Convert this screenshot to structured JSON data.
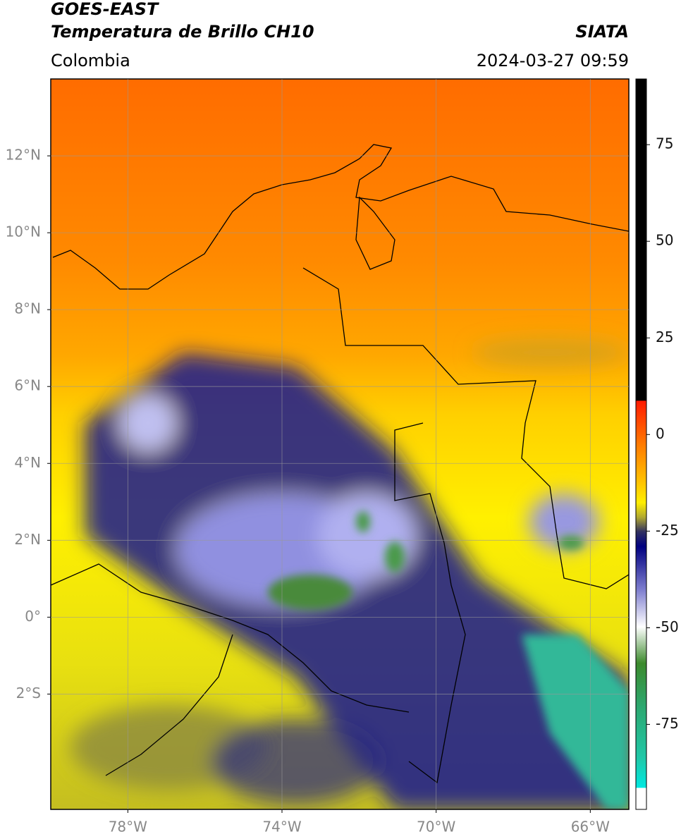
{
  "header": {
    "title": "GOES-EAST",
    "subtitle": "Temperatura de Brillo CH10",
    "source": "SIATA",
    "region": "Colombia",
    "datetime": "2024-03-27 09:59"
  },
  "map": {
    "xlim": [
      -80,
      -65
    ],
    "ylim": [
      -5,
      14
    ],
    "xticks": [
      {
        "value": -78,
        "label": "78°W"
      },
      {
        "value": -74,
        "label": "74°W"
      },
      {
        "value": -70,
        "label": "70°W"
      },
      {
        "value": -66,
        "label": "66°W"
      }
    ],
    "yticks": [
      {
        "value": 12,
        "label": "12°N"
      },
      {
        "value": 10,
        "label": "10°N"
      },
      {
        "value": 8,
        "label": "8°N"
      },
      {
        "value": 6,
        "label": "6°N"
      },
      {
        "value": 4,
        "label": "4°N"
      },
      {
        "value": 2,
        "label": "2°N"
      },
      {
        "value": 0,
        "label": "0°"
      },
      {
        "value": -2,
        "label": "2°S"
      }
    ],
    "grid": true
  },
  "colorbar": {
    "lim": [
      -97,
      92
    ],
    "ticks": [
      75,
      50,
      25,
      0,
      -25,
      -50,
      -75
    ]
  }
}
